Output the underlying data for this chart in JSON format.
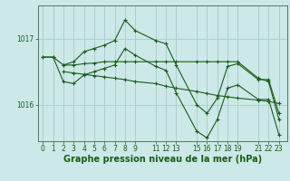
{
  "background_color": "#cce8e8",
  "plot_bg_color": "#cce8e8",
  "grid_color": "#aacccc",
  "line_color": "#1a5c1a",
  "marker_color": "#1a5c1a",
  "xlabel": "Graphe pression niveau de la mer (hPa)",
  "xlabel_fontsize": 7,
  "xtick_labels": [
    "0",
    "1",
    "2",
    "3",
    "4",
    "5",
    "6",
    "7",
    "8",
    "9",
    "11",
    "12",
    "13",
    "15",
    "16",
    "17",
    "18",
    "19",
    "21",
    "22",
    "23"
  ],
  "xtick_positions": [
    0,
    1,
    2,
    3,
    4,
    5,
    6,
    7,
    8,
    9,
    11,
    12,
    13,
    15,
    16,
    17,
    18,
    19,
    21,
    22,
    23
  ],
  "yticks": [
    1016,
    1017
  ],
  "ylim": [
    1015.45,
    1017.5
  ],
  "xlim": [
    -0.5,
    23.8
  ],
  "series": [
    {
      "x": [
        0,
        1,
        2,
        3,
        4,
        5,
        6,
        7,
        8,
        9,
        11,
        12,
        13,
        15,
        16,
        17,
        18,
        19,
        21,
        22,
        23
      ],
      "y": [
        1016.72,
        1016.72,
        1016.6,
        1016.65,
        1016.8,
        1016.85,
        1016.9,
        1016.97,
        1017.28,
        1017.12,
        1016.97,
        1016.92,
        1016.6,
        1016.0,
        1015.87,
        1016.1,
        1016.58,
        1016.62,
        1016.38,
        1016.38,
        1015.87
      ]
    },
    {
      "x": [
        2,
        3,
        4,
        5,
        6,
        7,
        8,
        9,
        11,
        12,
        13,
        15,
        16,
        17,
        18,
        19,
        21,
        22,
        23
      ],
      "y": [
        1016.6,
        1016.6,
        1016.62,
        1016.63,
        1016.65,
        1016.65,
        1016.65,
        1016.65,
        1016.65,
        1016.65,
        1016.65,
        1016.65,
        1016.65,
        1016.65,
        1016.65,
        1016.65,
        1016.4,
        1016.35,
        1015.78
      ]
    },
    {
      "x": [
        2,
        3,
        4,
        5,
        6,
        7,
        8,
        9,
        11,
        12,
        13,
        15,
        16,
        17,
        18,
        19,
        21,
        22,
        23
      ],
      "y": [
        1016.5,
        1016.48,
        1016.46,
        1016.44,
        1016.42,
        1016.4,
        1016.38,
        1016.35,
        1016.32,
        1016.28,
        1016.25,
        1016.2,
        1016.17,
        1016.14,
        1016.12,
        1016.1,
        1016.07,
        1016.05,
        1016.02
      ]
    },
    {
      "x": [
        0,
        1,
        2,
        3,
        4,
        5,
        6,
        7,
        8,
        9,
        11,
        12,
        13,
        15,
        16,
        17,
        18,
        19,
        21,
        22,
        23
      ],
      "y": [
        1016.72,
        1016.72,
        1016.35,
        1016.32,
        1016.45,
        1016.5,
        1016.55,
        1016.6,
        1016.85,
        1016.75,
        1016.58,
        1016.52,
        1016.18,
        1015.6,
        1015.5,
        1015.78,
        1016.25,
        1016.3,
        1016.08,
        1016.08,
        1015.55
      ]
    }
  ]
}
